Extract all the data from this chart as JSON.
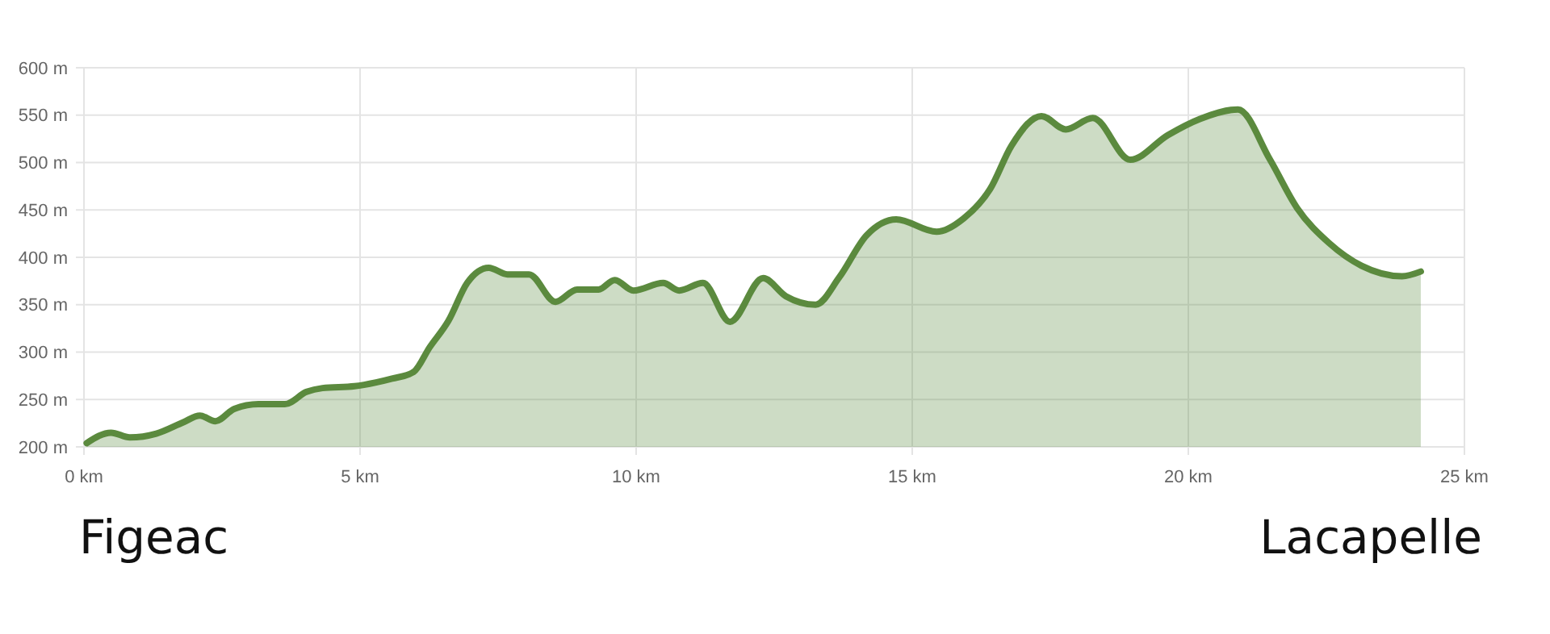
{
  "chart_data": {
    "type": "area",
    "x": [
      0.05,
      0.49,
      0.83,
      1.31,
      1.8,
      2.1,
      2.38,
      2.72,
      3.16,
      3.64,
      4.03,
      4.32,
      4.9,
      5.29,
      5.58,
      5.97,
      6.26,
      6.6,
      6.94,
      7.33,
      7.67,
      8.06,
      8.54,
      8.93,
      9.32,
      9.61,
      9.95,
      10.49,
      10.78,
      11.21,
      11.7,
      12.3,
      12.71,
      13.25,
      13.68,
      14.17,
      14.71,
      15.44,
      15.93,
      16.41,
      16.8,
      17.34,
      17.78,
      18.27,
      18.95,
      19.63,
      20.21,
      20.9,
      21.48,
      21.97,
      22.55,
      23.14,
      23.87,
      24.21
    ],
    "series": [
      {
        "color": "#5b8a3e",
        "values": [
          204,
          215,
          210,
          214,
          226,
          233,
          227,
          240,
          245,
          245,
          258,
          262,
          264,
          268,
          272,
          279,
          305,
          333,
          373,
          389,
          382,
          382,
          353,
          366,
          366,
          376,
          365,
          373,
          365,
          373,
          332,
          378,
          359,
          350,
          379,
          423,
          440,
          427,
          441,
          472,
          518,
          549,
          535,
          547,
          503,
          529,
          546,
          556,
          503,
          452,
          415,
          391,
          380,
          385
        ]
      }
    ],
    "xlim": [
      0,
      25
    ],
    "xticks": [
      {
        "value": 0,
        "label": "0 km"
      },
      {
        "value": 5,
        "label": "5 km"
      },
      {
        "value": 10,
        "label": "10 km"
      },
      {
        "value": 15,
        "label": "15 km"
      },
      {
        "value": 20,
        "label": "20 km"
      },
      {
        "value": 25,
        "label": "25 km"
      }
    ],
    "ylim": [
      200,
      600
    ],
    "yticks": [
      {
        "value": 200,
        "label": "200 m"
      },
      {
        "value": 250,
        "label": "250 m"
      },
      {
        "value": 300,
        "label": "300 m"
      },
      {
        "value": 350,
        "label": "350 m"
      },
      {
        "value": 400,
        "label": "400 m"
      },
      {
        "value": 450,
        "label": "450 m"
      },
      {
        "value": 500,
        "label": "500 m"
      },
      {
        "value": 550,
        "label": "550 m"
      },
      {
        "value": 600,
        "label": "600 m"
      }
    ],
    "grid": true,
    "marker": "none",
    "line_style": "solid",
    "annotations": [
      "Figeac",
      "Lacapelle"
    ]
  }
}
